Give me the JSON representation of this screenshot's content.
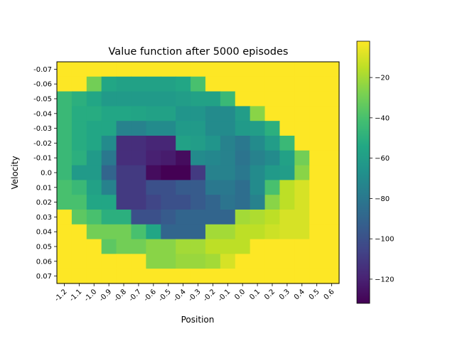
{
  "chart_data": {
    "type": "heatmap",
    "title": "Value function after 5000 episodes",
    "xlabel": "Position",
    "ylabel": "Velocity",
    "x_tick_labels": [
      "-1.2",
      "-1.1",
      "-1.0",
      "-0.9",
      "-0.8",
      "-0.7",
      "-0.6",
      "-0.5",
      "-0.4",
      "-0.3",
      "-0.2",
      "-0.1",
      "0.0",
      "0.1",
      "0.2",
      "0.3",
      "0.4",
      "0.5",
      "0.6"
    ],
    "y_tick_labels": [
      "-0.07",
      "-0.06",
      "-0.05",
      "-0.04",
      "-0.03",
      "-0.02",
      "-0.01",
      "0.0",
      "0.01",
      "0.02",
      "0.03",
      "0.04",
      "0.05",
      "0.06",
      "0.07"
    ],
    "colormap": "viridis",
    "colorbar_range": [
      -132,
      -2
    ],
    "colorbar_ticks": [
      -120,
      -100,
      -80,
      -60,
      -40,
      -20
    ],
    "colorbar_tick_labels": [
      "−120",
      "−100",
      "−80",
      "−60",
      "−40",
      "−20"
    ],
    "values": [
      [
        -2,
        -2,
        -2,
        -2,
        -2,
        -2,
        -2,
        -2,
        -2,
        -2,
        -2,
        -2,
        -2,
        -2,
        -2,
        -2,
        -2,
        -2,
        -2
      ],
      [
        -2,
        -2,
        -30,
        -55,
        -58,
        -58,
        -58,
        -58,
        -55,
        -40,
        -2,
        -2,
        -2,
        -2,
        -2,
        -2,
        -2,
        -2,
        -2
      ],
      [
        -45,
        -50,
        -55,
        -62,
        -62,
        -62,
        -62,
        -62,
        -60,
        -58,
        -58,
        -45,
        -2,
        -2,
        -2,
        -2,
        -2,
        -2,
        -2
      ],
      [
        -45,
        -52,
        -52,
        -55,
        -55,
        -56,
        -58,
        -58,
        -65,
        -65,
        -70,
        -70,
        -60,
        -25,
        -2,
        -2,
        -2,
        -2,
        -2
      ],
      [
        -45,
        -52,
        -55,
        -55,
        -75,
        -75,
        -70,
        -70,
        -62,
        -62,
        -70,
        -70,
        -62,
        -60,
        -50,
        -2,
        -2,
        -2,
        -2
      ],
      [
        -45,
        -52,
        -55,
        -70,
        -115,
        -115,
        -118,
        -118,
        -58,
        -60,
        -65,
        -75,
        -80,
        -70,
        -60,
        -45,
        -2,
        -2,
        -2
      ],
      [
        -45,
        -50,
        -62,
        -80,
        -115,
        -115,
        -120,
        -122,
        -128,
        -70,
        -72,
        -75,
        -82,
        -75,
        -70,
        -58,
        -30,
        -2,
        -2
      ],
      [
        -45,
        -62,
        -62,
        -90,
        -110,
        -110,
        -128,
        -132,
        -132,
        -110,
        -75,
        -75,
        -80,
        -70,
        -62,
        -60,
        -25,
        -2,
        -2
      ],
      [
        -40,
        -45,
        -58,
        -75,
        -110,
        -110,
        -100,
        -100,
        -95,
        -95,
        -80,
        -80,
        -85,
        -70,
        -40,
        -15,
        -10,
        -2,
        -2
      ],
      [
        -40,
        -40,
        -55,
        -55,
        -110,
        -110,
        -105,
        -100,
        -100,
        -95,
        -90,
        -82,
        -85,
        -75,
        -25,
        -15,
        -10,
        -2,
        -2
      ],
      [
        -2,
        -35,
        -40,
        -50,
        -50,
        -100,
        -100,
        -95,
        -90,
        -90,
        -90,
        -90,
        -20,
        -18,
        -15,
        -10,
        -10,
        -2,
        -2
      ],
      [
        -2,
        -2,
        -30,
        -30,
        -30,
        -40,
        -55,
        -90,
        -90,
        -90,
        -20,
        -20,
        -15,
        -15,
        -12,
        -10,
        -10,
        -2,
        -2
      ],
      [
        -2,
        -2,
        -2,
        -35,
        -30,
        -30,
        -25,
        -25,
        -20,
        -20,
        -15,
        -15,
        -15,
        -2,
        -2,
        -2,
        -2,
        -2,
        -2
      ],
      [
        -2,
        -2,
        -2,
        -2,
        -2,
        -2,
        -25,
        -25,
        -22,
        -22,
        -20,
        -10,
        -2,
        -2,
        -2,
        -2,
        -2,
        -2,
        -2
      ],
      [
        -2,
        -2,
        -2,
        -2,
        -2,
        -2,
        -2,
        -2,
        -2,
        -2,
        -2,
        -2,
        -2,
        -2,
        -2,
        -2,
        -2,
        -2,
        -2
      ]
    ]
  }
}
